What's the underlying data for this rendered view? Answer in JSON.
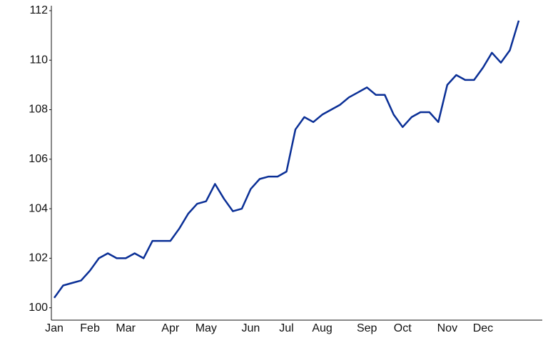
{
  "chart_data": {
    "type": "line",
    "categories": [
      "Jan",
      null,
      null,
      null,
      "Feb",
      null,
      null,
      null,
      "Mar",
      null,
      null,
      null,
      null,
      "Apr",
      null,
      null,
      null,
      "May",
      null,
      null,
      null,
      null,
      "Jun",
      null,
      null,
      null,
      "Jul",
      null,
      null,
      null,
      "Aug",
      null,
      null,
      null,
      null,
      "Sep",
      null,
      null,
      null,
      "Oct",
      null,
      null,
      null,
      null,
      "Nov",
      null,
      null,
      null,
      "Dec",
      null,
      null,
      null,
      null
    ],
    "series": [
      {
        "color": "#0a2f96",
        "values": [
          100.4,
          100.9,
          101.0,
          101.1,
          101.5,
          102.0,
          102.2,
          102.0,
          102.0,
          102.2,
          102.0,
          102.7,
          102.7,
          102.7,
          103.2,
          103.8,
          104.2,
          104.3,
          105.0,
          104.4,
          103.9,
          104.0,
          104.8,
          105.2,
          105.3,
          105.3,
          105.5,
          107.2,
          107.7,
          107.5,
          107.8,
          108.0,
          108.2,
          108.5,
          108.7,
          108.9,
          108.6,
          108.6,
          107.8,
          107.3,
          107.7,
          107.9,
          107.9,
          107.5,
          109.0,
          109.4,
          109.2,
          109.2,
          109.7,
          110.3,
          109.9,
          110.4,
          111.6
        ]
      }
    ],
    "ylim": [
      99.5,
      112.2
    ],
    "yticks": [
      100,
      102,
      104,
      106,
      108,
      110,
      112
    ],
    "grid": false
  }
}
